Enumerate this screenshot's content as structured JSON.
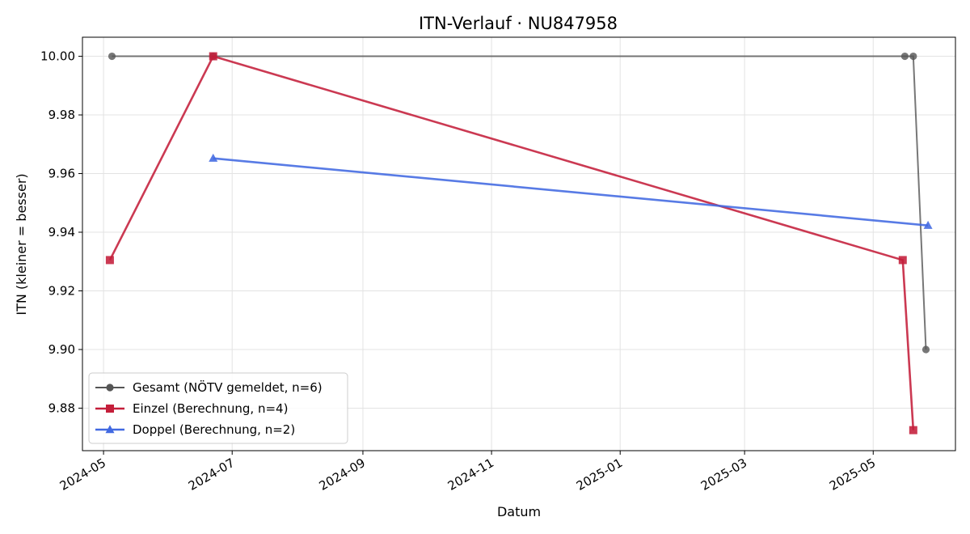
{
  "chart_data": {
    "type": "line",
    "title": "ITN-Verlauf · NU847958",
    "xlabel": "Datum",
    "ylabel": "ITN  (kleiner = besser)",
    "xlim": [
      "2024-04-21",
      "2025-06-09"
    ],
    "ylim": [
      9.8655,
      10.0065
    ],
    "x_ticks": [
      "2024-05",
      "2024-07",
      "2024-09",
      "2024-11",
      "2025-01",
      "2025-03",
      "2025-05"
    ],
    "y_ticks": [
      "9.88",
      "9.90",
      "9.92",
      "9.94",
      "9.96",
      "9.98",
      "10.00"
    ],
    "grid": true,
    "legend_position": "lower-left",
    "series": [
      {
        "name": "Gesamt (NÖTV gemeldet, n=6)",
        "color": "#555555",
        "marker": "circle",
        "points": [
          {
            "x": "2024-05-05",
            "y": 10.0
          },
          {
            "x": "2024-06-22",
            "y": 10.0
          },
          {
            "x": "2025-05-16",
            "y": 10.0
          },
          {
            "x": "2025-05-20",
            "y": 10.0
          },
          {
            "x": "2025-05-26",
            "y": 9.9
          }
        ]
      },
      {
        "name": "Einzel (Berechnung, n=4)",
        "color": "#c41e3a",
        "marker": "square",
        "points": [
          {
            "x": "2024-05-04",
            "y": 9.9305
          },
          {
            "x": "2024-06-22",
            "y": 10.0
          },
          {
            "x": "2025-05-15",
            "y": 9.9305
          },
          {
            "x": "2025-05-20",
            "y": 9.8725
          }
        ]
      },
      {
        "name": "Doppel (Berechnung, n=2)",
        "color": "#4169e1",
        "marker": "triangle",
        "points": [
          {
            "x": "2024-06-22",
            "y": 9.9652
          },
          {
            "x": "2025-05-27",
            "y": 9.9423
          }
        ]
      }
    ]
  }
}
